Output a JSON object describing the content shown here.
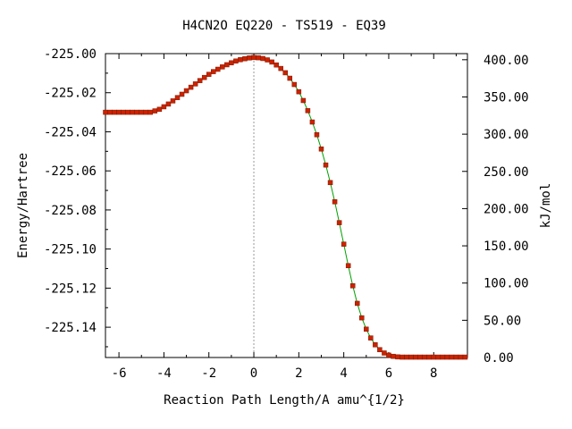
{
  "chart_data": {
    "type": "line",
    "title": "H4CN2O   EQ220 - TS519 - EQ39",
    "xlabel": "Reaction Path Length/A amu^{1/2}",
    "ylabel": "Energy/Hartree",
    "y2label": "kJ/mol",
    "xlim": [
      -6.6,
      9.5
    ],
    "ylim": [
      -225.1555,
      -225.0
    ],
    "y2lim": [
      0,
      408.2
    ],
    "x_ticks": [
      -6,
      -4,
      -2,
      0,
      2,
      4,
      6,
      8
    ],
    "x_tick_labels": [
      "-6",
      "-4",
      "-2",
      "0",
      "2",
      "4",
      "6",
      "8"
    ],
    "y_ticks": [
      -225.0,
      -225.02,
      -225.04,
      -225.06,
      -225.08,
      -225.1,
      -225.12,
      -225.14
    ],
    "y_tick_labels": [
      "-225.00",
      "-225.02",
      "-225.04",
      "-225.06",
      "-225.08",
      "-225.10",
      "-225.12",
      "-225.14"
    ],
    "y2_ticks": [
      0,
      50,
      100,
      150,
      200,
      250,
      300,
      350,
      400
    ],
    "y2_tick_labels": [
      "0.00",
      "50.00",
      "100.00",
      "150.00",
      "200.00",
      "250.00",
      "300.00",
      "350.00",
      "400.00"
    ],
    "grid": false,
    "vertical_reference_line_x": 0,
    "series": [
      {
        "color_line": "#00a000",
        "color_marker": "#cc2200",
        "x": [
          -6.6,
          -6.4,
          -6.2,
          -6.0,
          -5.8,
          -5.6,
          -5.4,
          -5.2,
          -5.0,
          -4.8,
          -4.6,
          -4.4,
          -4.2,
          -4.0,
          -3.8,
          -3.6,
          -3.4,
          -3.2,
          -3.0,
          -2.8,
          -2.6,
          -2.4,
          -2.2,
          -2.0,
          -1.8,
          -1.6,
          -1.4,
          -1.2,
          -1.0,
          -0.8,
          -0.6,
          -0.4,
          -0.2,
          0.0,
          0.2,
          0.4,
          0.6,
          0.8,
          1.0,
          1.2,
          1.4,
          1.6,
          1.8,
          2.0,
          2.2,
          2.4,
          2.6,
          2.8,
          3.0,
          3.2,
          3.4,
          3.6,
          3.8,
          4.0,
          4.2,
          4.4,
          4.6,
          4.8,
          5.0,
          5.2,
          5.4,
          5.6,
          5.8,
          6.0,
          6.2,
          6.4,
          6.6,
          6.8,
          7.0,
          7.2,
          7.4,
          7.6,
          7.8,
          8.0,
          8.2,
          8.4,
          8.6,
          8.8,
          9.0,
          9.2,
          9.4
        ],
        "y": [
          -225.03,
          -225.03,
          -225.03,
          -225.03,
          -225.03,
          -225.03,
          -225.03,
          -225.03,
          -225.03,
          -225.03,
          -225.03,
          -225.0293,
          -225.0285,
          -225.0272,
          -225.0258,
          -225.0242,
          -225.0225,
          -225.0208,
          -225.019,
          -225.0172,
          -225.0155,
          -225.0138,
          -225.0122,
          -225.0106,
          -225.0092,
          -225.008,
          -225.0068,
          -225.0057,
          -225.0047,
          -225.0038,
          -225.0031,
          -225.0026,
          -225.0022,
          -225.002,
          -225.0021,
          -225.0025,
          -225.0032,
          -225.0043,
          -225.0058,
          -225.0076,
          -225.0098,
          -225.0126,
          -225.0158,
          -225.0195,
          -225.024,
          -225.0292,
          -225.035,
          -225.0415,
          -225.0488,
          -225.057,
          -225.066,
          -225.0758,
          -225.0865,
          -225.0975,
          -225.1085,
          -225.1188,
          -225.1278,
          -225.1352,
          -225.141,
          -225.1455,
          -225.149,
          -225.1515,
          -225.1532,
          -225.1543,
          -225.1549,
          -225.1552,
          -225.1553,
          -225.1553,
          -225.1553,
          -225.1553,
          -225.1553,
          -225.1553,
          -225.1553,
          -225.1553,
          -225.1553,
          -225.1553,
          -225.1553,
          -225.1553,
          -225.1553,
          -225.1553,
          -225.1553
        ]
      }
    ]
  }
}
